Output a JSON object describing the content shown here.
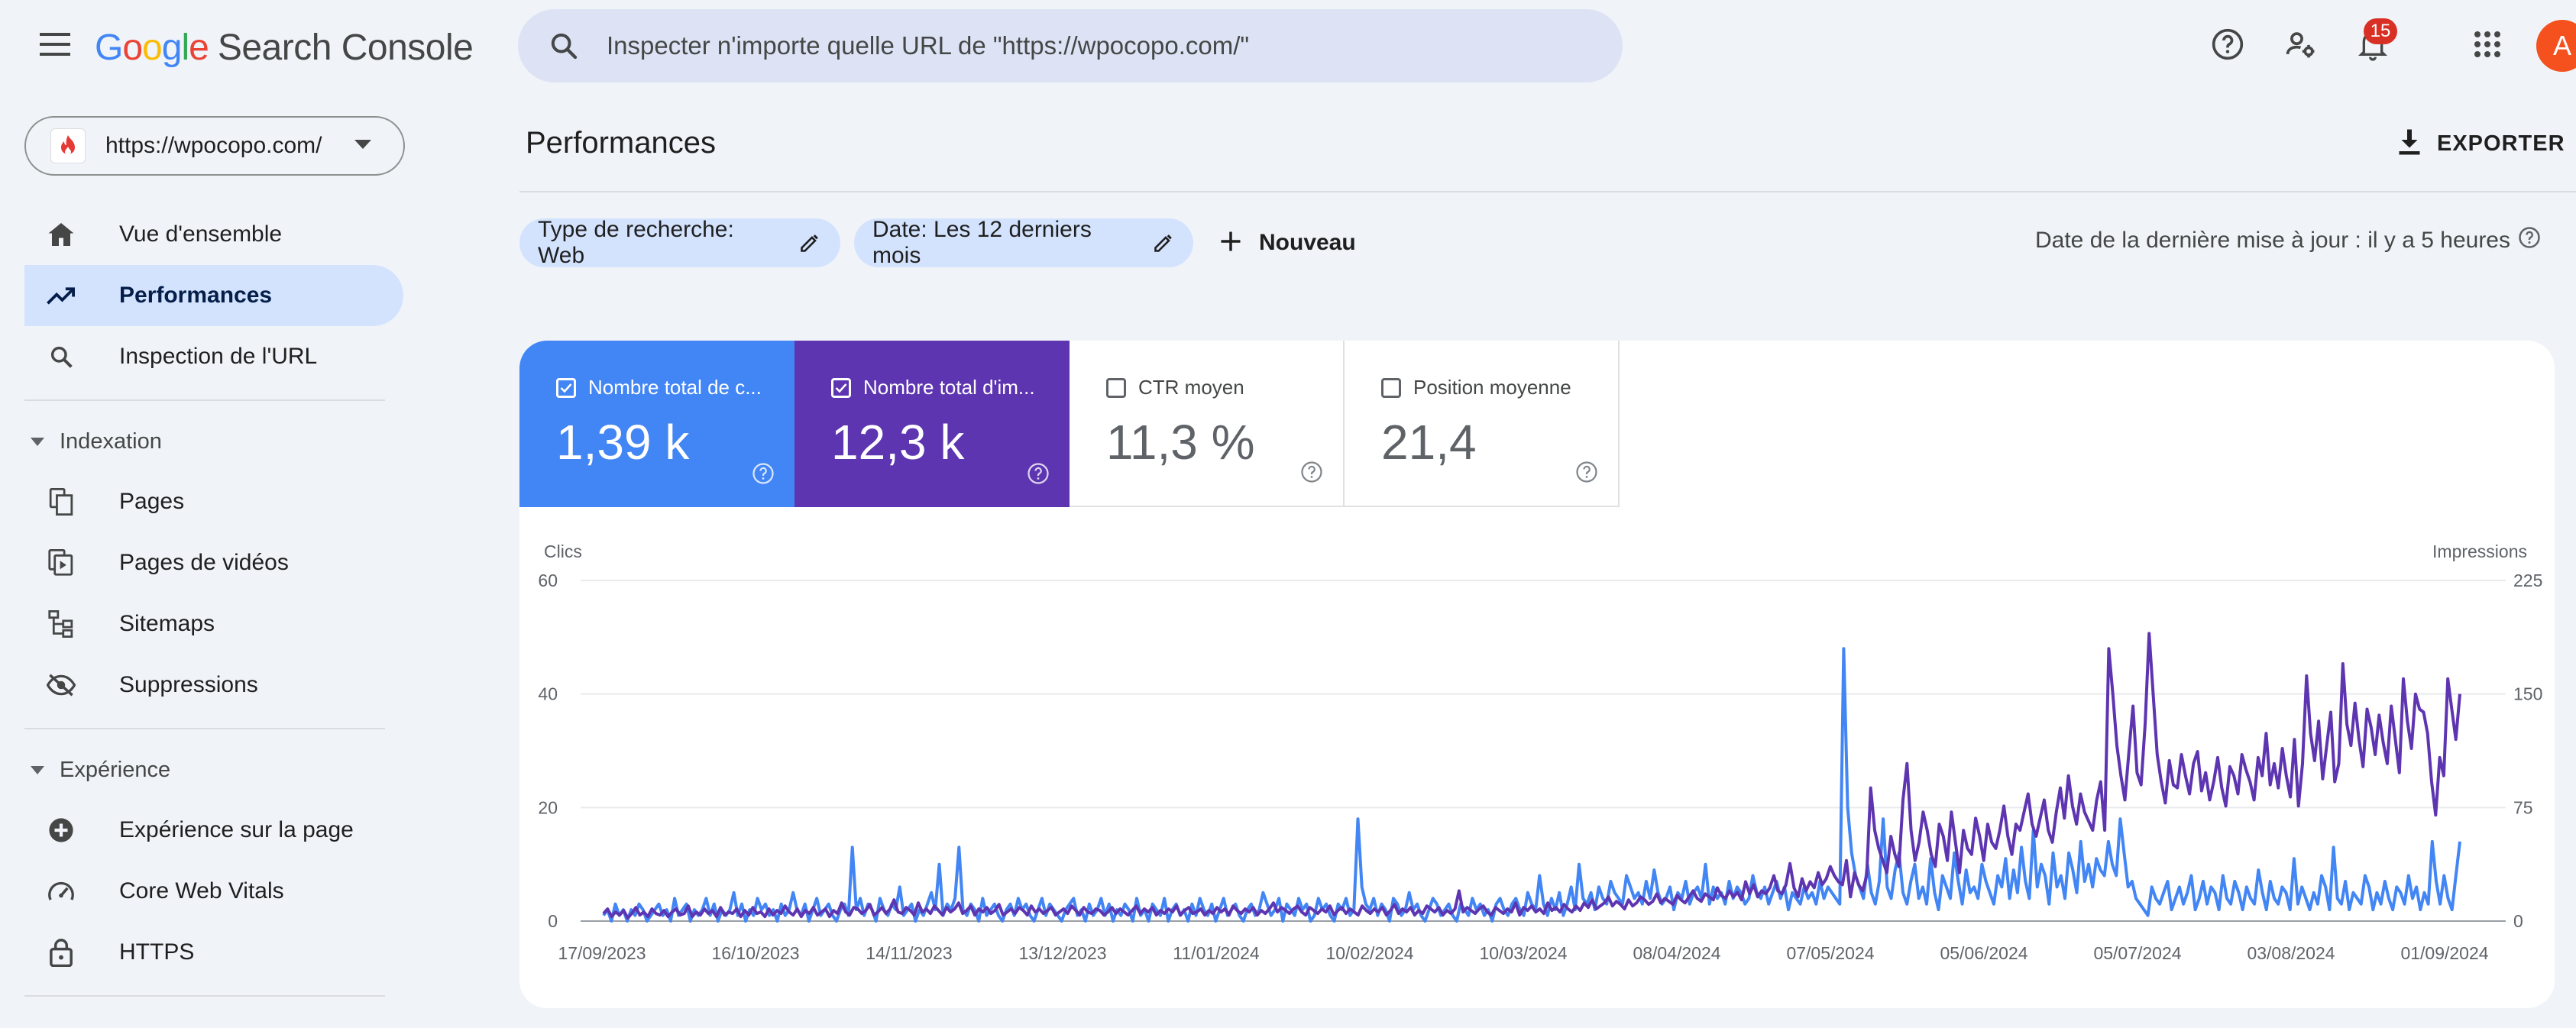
{
  "app": {
    "brand_google": "Google",
    "brand_product": "Search Console",
    "search_placeholder": "Inspecter n'importe quelle URL de \"https://wpocopo.com/\"",
    "notification_count": "15",
    "avatar_initial": "A",
    "colors": {
      "clicks": "#4285f4",
      "impressions": "#5e35b1",
      "active_nav": "#d3e3fd",
      "background": "#f0f4f9"
    }
  },
  "sidebar": {
    "property_url": "https://wpocopo.com/",
    "items_top": [
      {
        "label": "Vue d'ensemble",
        "icon": "home-icon"
      },
      {
        "label": "Performances",
        "icon": "trending-up-icon",
        "active": true
      },
      {
        "label": "Inspection de l'URL",
        "icon": "search-icon"
      }
    ],
    "section_indexation": {
      "label": "Indexation",
      "items": [
        {
          "label": "Pages",
          "icon": "pages-icon"
        },
        {
          "label": "Pages de vidéos",
          "icon": "video-pages-icon"
        },
        {
          "label": "Sitemaps",
          "icon": "sitemap-icon"
        },
        {
          "label": "Suppressions",
          "icon": "eye-off-icon"
        }
      ]
    },
    "section_experience": {
      "label": "Expérience",
      "items": [
        {
          "label": "Expérience sur la page",
          "icon": "plus-circle-icon"
        },
        {
          "label": "Core Web Vitals",
          "icon": "gauge-icon"
        },
        {
          "label": "HTTPS",
          "icon": "lock-icon"
        }
      ]
    }
  },
  "main": {
    "title": "Performances",
    "export_label": "EXPORTER",
    "filters": [
      {
        "label": "Type de recherche: Web"
      },
      {
        "label": "Date: Les 12 derniers mois"
      }
    ],
    "new_label": "Nouveau",
    "last_update": "Date de la dernière mise à jour : il y a 5 heures",
    "metrics": [
      {
        "label": "Nombre total de clics",
        "display_label": "Nombre total de c...",
        "value": "1,39 k",
        "checked": true
      },
      {
        "label": "Nombre total d'impressions",
        "display_label": "Nombre total d'im...",
        "value": "12,3 k",
        "checked": true
      },
      {
        "label": "CTR moyen",
        "display_label": "CTR moyen",
        "value": "11,3 %",
        "checked": false
      },
      {
        "label": "Position moyenne",
        "display_label": "Position moyenne",
        "value": "21,4",
        "checked": false
      }
    ]
  },
  "chart_data": {
    "type": "line",
    "ylabel_left": "Clics",
    "ylabel_right": "Impressions",
    "yticks_left": [
      "60",
      "40",
      "20",
      "0"
    ],
    "yticks_right": [
      "225",
      "150",
      "75",
      "0"
    ],
    "ylim_left": [
      0,
      60
    ],
    "ylim_right": [
      0,
      225
    ],
    "x_tick_labels": [
      "17/09/2023",
      "16/10/2023",
      "14/11/2023",
      "13/12/2023",
      "11/01/2024",
      "10/02/2024",
      "10/03/2024",
      "08/04/2024",
      "07/05/2024",
      "05/06/2024",
      "05/07/2024",
      "03/08/2024",
      "01/09/2024"
    ],
    "grid": true,
    "series": [
      {
        "name": "Clics",
        "axis": "left",
        "color": "#4285f4",
        "values": [
          1,
          2,
          0,
          3,
          1,
          2,
          0,
          2,
          1,
          3,
          2,
          0,
          1,
          2,
          3,
          1,
          2,
          0,
          4,
          1,
          2,
          3,
          0,
          2,
          1,
          2,
          4,
          1,
          3,
          0,
          2,
          1,
          2,
          5,
          1,
          3,
          0,
          2,
          1,
          4,
          2,
          3,
          1,
          2,
          0,
          3,
          1,
          2,
          5,
          2,
          1,
          3,
          0,
          2,
          4,
          1,
          2,
          3,
          1,
          0,
          2,
          3,
          1,
          13,
          2,
          4,
          1,
          3,
          2,
          0,
          4,
          2,
          1,
          3,
          2,
          6,
          1,
          2,
          3,
          0,
          2,
          1,
          3,
          5,
          2,
          10,
          1,
          3,
          2,
          4,
          13,
          2,
          1,
          3,
          2,
          0,
          4,
          1,
          2,
          3,
          1,
          0,
          2,
          3,
          1,
          4,
          2,
          3,
          1,
          0,
          2,
          4,
          1,
          3,
          2,
          1,
          0,
          2,
          3,
          4,
          1,
          2,
          0,
          3,
          1,
          2,
          4,
          1,
          3,
          0,
          2,
          1,
          3,
          2,
          0,
          4,
          1,
          2,
          0,
          3,
          2,
          1,
          4,
          0,
          2,
          3,
          1,
          2,
          0,
          3,
          1,
          4,
          2,
          1,
          3,
          0,
          2,
          4,
          1,
          2,
          3,
          1,
          0,
          2,
          3,
          1,
          2,
          5,
          3,
          1,
          2,
          4,
          0,
          3,
          2,
          1,
          4,
          2,
          3,
          0,
          1,
          4,
          2,
          3,
          1,
          0,
          3,
          2,
          4,
          1,
          2,
          18,
          6,
          3,
          2,
          4,
          1,
          3,
          2,
          0,
          4,
          3,
          1,
          2,
          5,
          2,
          3,
          1,
          0,
          2,
          4,
          3,
          1,
          2,
          3,
          1,
          0,
          3,
          2,
          1,
          4,
          2,
          3,
          1,
          2,
          0,
          3,
          4,
          2,
          1,
          3,
          4,
          2,
          1,
          5,
          3,
          2,
          8,
          3,
          1,
          4,
          2,
          5,
          1,
          3,
          6,
          2,
          10,
          4,
          3,
          5,
          2,
          6,
          4,
          3,
          7,
          5,
          4,
          3,
          8,
          6,
          4,
          5,
          3,
          7,
          4,
          9,
          5,
          3,
          4,
          6,
          2,
          5,
          4,
          7,
          3,
          5,
          6,
          4,
          10,
          3,
          6,
          4,
          5,
          3,
          7,
          4,
          6,
          5,
          3,
          4,
          8,
          5,
          4,
          6,
          3,
          5,
          7,
          4,
          6,
          2,
          5,
          4,
          3,
          6,
          4,
          5,
          3,
          7,
          4,
          6,
          5,
          4,
          3,
          48,
          20,
          12,
          8,
          6,
          4,
          10,
          5,
          3,
          7,
          18,
          6,
          4,
          9,
          12,
          5,
          3,
          7,
          10,
          4,
          6,
          3,
          11,
          5,
          2,
          8,
          6,
          4,
          12,
          7,
          3,
          9,
          5,
          6,
          4,
          10,
          7,
          5,
          3,
          8,
          6,
          11,
          4,
          9,
          5,
          13,
          7,
          4,
          16,
          6,
          10,
          8,
          3,
          12,
          6,
          8,
          4,
          12,
          9,
          5,
          14,
          7,
          10,
          6,
          11,
          9,
          8,
          14,
          10,
          8,
          18,
          12,
          6,
          7,
          4,
          3,
          2,
          1,
          6,
          4,
          3,
          5,
          7,
          2,
          4,
          6,
          3,
          5,
          8,
          2,
          4,
          7,
          3,
          6,
          5,
          2,
          8,
          4,
          3,
          7,
          5,
          2,
          6,
          4,
          3,
          9,
          5,
          2,
          7,
          4,
          3,
          6,
          5,
          2,
          11,
          3,
          6,
          4,
          2,
          5,
          3,
          8,
          6,
          2,
          13,
          4,
          3,
          7,
          2,
          5,
          4,
          3,
          8,
          6,
          2,
          5,
          3,
          7,
          4,
          2,
          6,
          5,
          3,
          8,
          4,
          6,
          2,
          5,
          3,
          14,
          7,
          3,
          8,
          4,
          2,
          8,
          14
        ]
      },
      {
        "name": "Impressions",
        "axis": "right",
        "color": "#5e35b1",
        "values": [
          5,
          8,
          3,
          6,
          4,
          7,
          2,
          5,
          9,
          4,
          6,
          3,
          8,
          5,
          4,
          7,
          3,
          6,
          8,
          4,
          5,
          10,
          3,
          6,
          4,
          8,
          5,
          7,
          3,
          9,
          4,
          6,
          5,
          8,
          3,
          7,
          4,
          9,
          5,
          6,
          3,
          8,
          4,
          7,
          5,
          10,
          6,
          4,
          8,
          3,
          7,
          5,
          9,
          4,
          6,
          8,
          3,
          7,
          5,
          12,
          6,
          4,
          9,
          8,
          5,
          7,
          11,
          4,
          6,
          9,
          5,
          8,
          14,
          6,
          5,
          9,
          7,
          4,
          12,
          6,
          8,
          5,
          10,
          7,
          4,
          9,
          6,
          8,
          12,
          5,
          7,
          10,
          4,
          8,
          6,
          9,
          5,
          7,
          11,
          4,
          6,
          8,
          5,
          9,
          7,
          4,
          10,
          6,
          8,
          5,
          7,
          9,
          4,
          6,
          8,
          5,
          10,
          7,
          4,
          9,
          6,
          5,
          8,
          7,
          4,
          6,
          9,
          5,
          8,
          6,
          4,
          7,
          10,
          5,
          8,
          6,
          9,
          4,
          7,
          5,
          8,
          6,
          10,
          4,
          7,
          9,
          5,
          6,
          8,
          4,
          7,
          5,
          9,
          6,
          8,
          4,
          10,
          7,
          5,
          8,
          6,
          9,
          4,
          7,
          5,
          8,
          12,
          6,
          9,
          7,
          5,
          8,
          10,
          6,
          4,
          9,
          7,
          5,
          8,
          6,
          10,
          4,
          7,
          9,
          5,
          8,
          6,
          4,
          10,
          7,
          5,
          8,
          6,
          9,
          4,
          7,
          11,
          5,
          8,
          6,
          9,
          4,
          7,
          5,
          10,
          8,
          6,
          9,
          4,
          7,
          5,
          8,
          20,
          6,
          9,
          7,
          5,
          8,
          10,
          6,
          4,
          9,
          7,
          5,
          8,
          6,
          12,
          4,
          9,
          7,
          10,
          6,
          8,
          5,
          12,
          7,
          9,
          6,
          11,
          8,
          6,
          10,
          7,
          12,
          9,
          14,
          8,
          10,
          12,
          16,
          10,
          13,
          11,
          8,
          14,
          10,
          12,
          16,
          14,
          11,
          13,
          18,
          12,
          15,
          13,
          11,
          17,
          14,
          12,
          16,
          20,
          15,
          13,
          18,
          16,
          14,
          22,
          17,
          15,
          20,
          16,
          19,
          14,
          26,
          18,
          24,
          16,
          20,
          18,
          22,
          30,
          20,
          18,
          24,
          38,
          22,
          16,
          28,
          20,
          26,
          22,
          32,
          24,
          28,
          36,
          30,
          26,
          24,
          40,
          16,
          32,
          24,
          20,
          30,
          88,
          60,
          48,
          40,
          32,
          56,
          44,
          36,
          80,
          104,
          60,
          40,
          52,
          72,
          60,
          44,
          36,
          64,
          56,
          40,
          72,
          52,
          32,
          60,
          48,
          44,
          68,
          56,
          40,
          64,
          52,
          48,
          60,
          76,
          56,
          44,
          64,
          60,
          72,
          84,
          64,
          56,
          68,
          80,
          60,
          52,
          72,
          88,
          68,
          96,
          76,
          64,
          84,
          72,
          66,
          60,
          80,
          92,
          60,
          180,
          150,
          116,
          96,
          80,
          112,
          142,
          98,
          90,
          130,
          190,
          150,
          110,
          92,
          78,
          106,
          90,
          88,
          110,
          96,
          84,
          104,
          112,
          86,
          98,
          80,
          92,
          108,
          88,
          76,
          102,
          96,
          84,
          110,
          100,
          92,
          80,
          108,
          96,
          124,
          90,
          104,
          88,
          114,
          96,
          82,
          120,
          76,
          104,
          162,
          124,
          106,
          132,
          94,
          116,
          138,
          92,
          104,
          170,
          130,
          116,
          144,
          120,
          102,
          140,
          128,
          110,
          136,
          118,
          104,
          142,
          120,
          98,
          160,
          132,
          114,
          150,
          140,
          138,
          124,
          92,
          70,
          108,
          96,
          160,
          140,
          120,
          150
        ]
      }
    ]
  }
}
